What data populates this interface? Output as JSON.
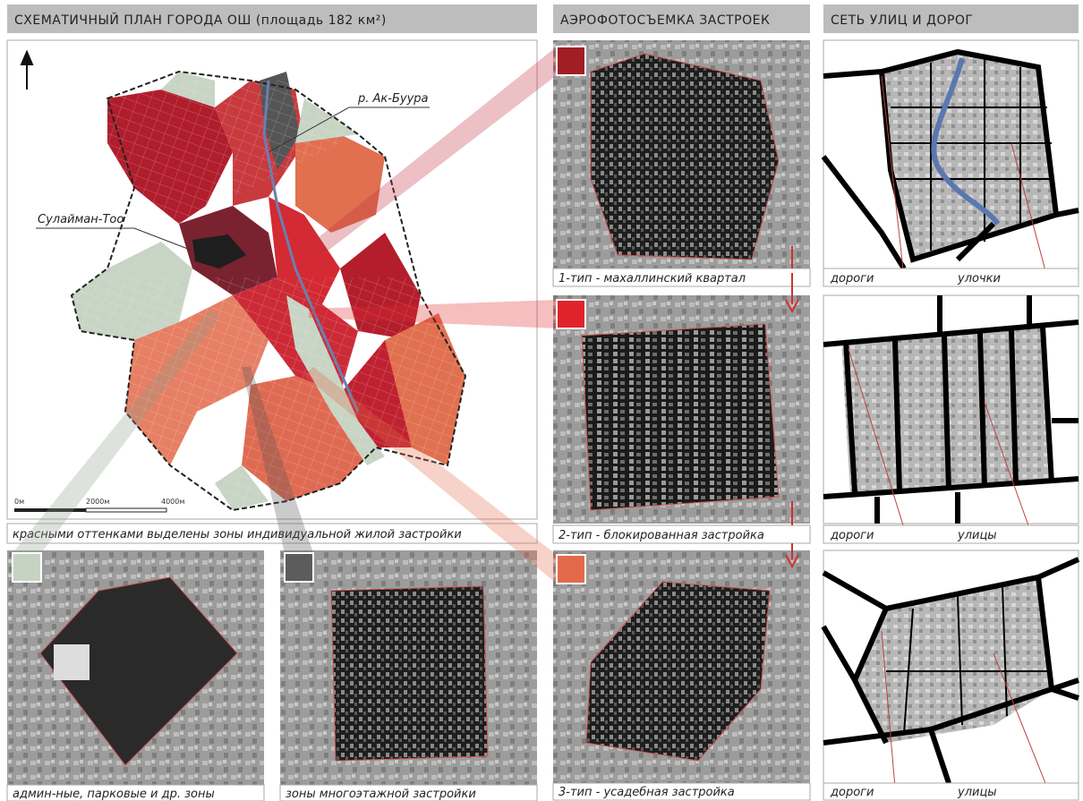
{
  "header": {
    "map_title": "СХЕМАТИЧНЫЙ ПЛАН ГОРОДА ОШ (площадь 182 км²)",
    "aerial_title": "АЭРОФОТОСЪЕМКА ЗАСТРОЕК",
    "streets_title": "СЕТЬ УЛИЦ И ДОРОГ"
  },
  "map": {
    "labels": [
      "р. Ак-Буура",
      "Сулайман-Тоо"
    ],
    "scale": [
      "0м",
      "2000м",
      "4000м"
    ],
    "caption": "красными оттенками выделены зоны индивидуальной жилой застройки"
  },
  "aerial": {
    "captions": [
      "1-тип - махаллинский квартал",
      "2-тип - блокированная застройка",
      "3-тип - усадебная застройка"
    ]
  },
  "other_zones": {
    "captions": [
      "админ-ные, парковые и др. зоны",
      "зоны многоэтажной застройки"
    ]
  },
  "streets": {
    "captions": [
      [
        "дороги",
        "улочки"
      ],
      [
        "дороги",
        "улицы"
      ],
      [
        "дороги",
        "улицы"
      ]
    ]
  }
}
